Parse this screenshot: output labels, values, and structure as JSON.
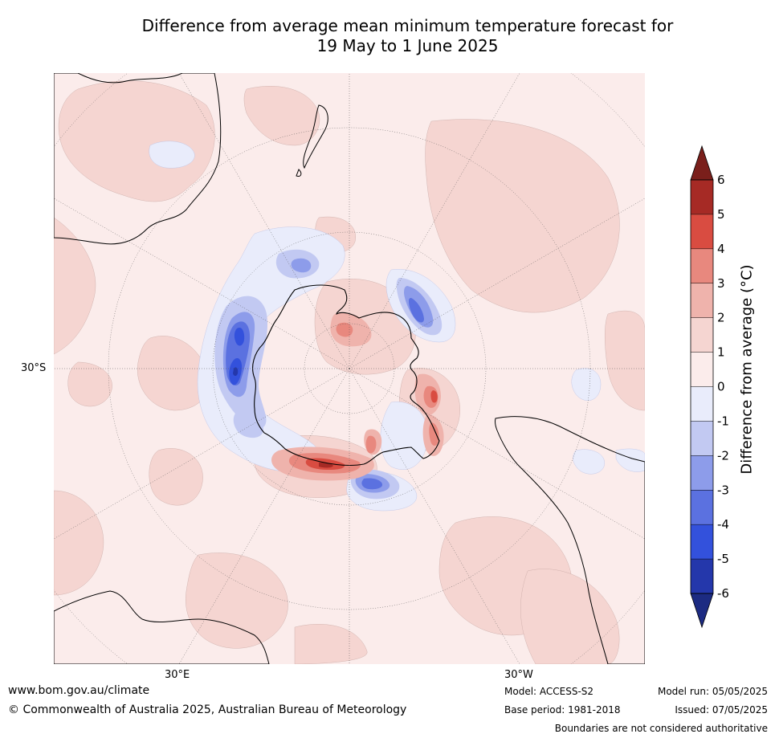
{
  "title": {
    "line1": "Difference from average mean minimum temperature forecast for",
    "line2": "19 May to 1 June 2025"
  },
  "map": {
    "projection": "south-polar-stereographic",
    "lat_labels": [
      {
        "text": "30°S"
      }
    ],
    "lon_labels": [
      {
        "text": "30°E"
      },
      {
        "text": "30°W"
      }
    ],
    "features": [
      "Antarctica",
      "Australia",
      "New Zealand",
      "South America",
      "Africa"
    ]
  },
  "colorbar": {
    "label": "Difference from average (°C)",
    "ticks": [
      "6",
      "5",
      "4",
      "3",
      "2",
      "1",
      "0",
      "-1",
      "-2",
      "-3",
      "-4",
      "-5",
      "-6"
    ],
    "colors_top_to_bottom": [
      "#a62a25",
      "#d94c41",
      "#e8887e",
      "#efb3ac",
      "#f5d5d1",
      "#fbeceb",
      "#e9ecfb",
      "#c2c9f2",
      "#8d9cea",
      "#5b71e0",
      "#3351dc",
      "#2437ab"
    ],
    "extend_high_color": "#7a1f1b",
    "extend_low_color": "#1c2b82"
  },
  "footer": {
    "website": "www.bom.gov.au/climate",
    "copyright": "© Commonwealth of Australia 2025, Australian Bureau of Meteorology",
    "model": "Model: ACCESS-S2",
    "base_period": "Base period: 1981-2018",
    "model_run": "Model run: 05/05/2025",
    "issued": "Issued: 07/05/2025",
    "disclaimer": "Boundaries are not considered authoritative"
  }
}
